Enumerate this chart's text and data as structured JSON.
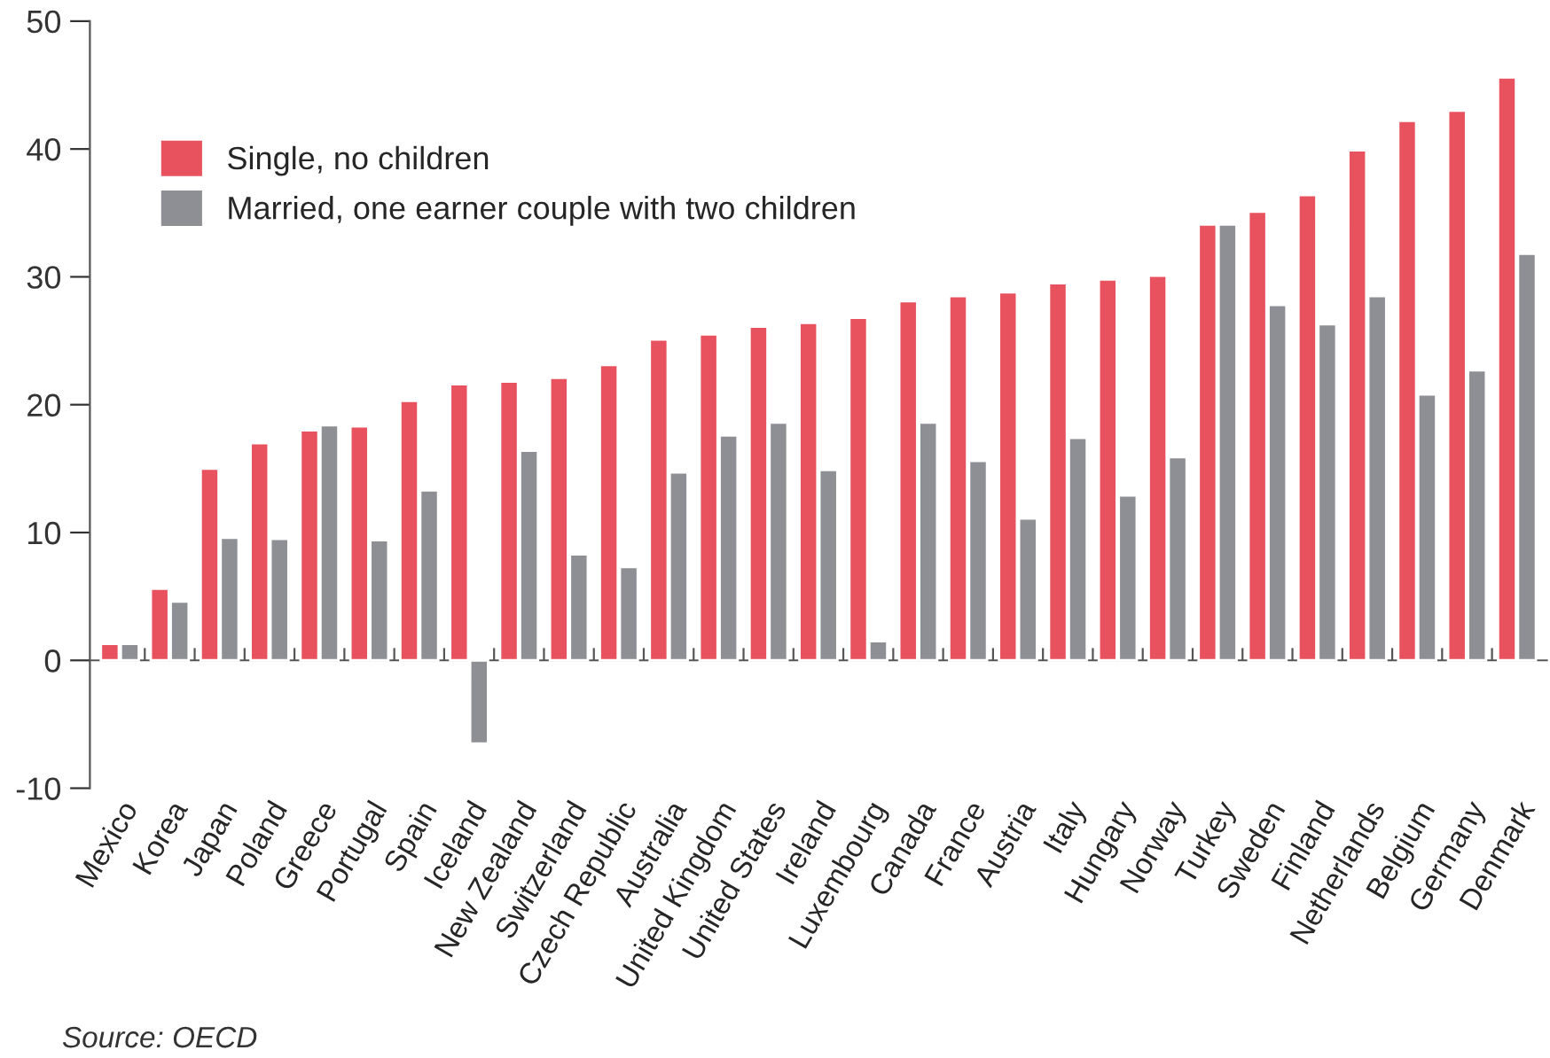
{
  "chart_data": {
    "type": "bar",
    "categories": [
      "Mexico",
      "Korea",
      "Japan",
      "Poland",
      "Greece",
      "Portugal",
      "Spain",
      "Iceland",
      "New Zealand",
      "Switzerland",
      "Czech Republic",
      "Australia",
      "United Kingdom",
      "United States",
      "Ireland",
      "Luxembourg",
      "Canada",
      "France",
      "Austria",
      "Italy",
      "Hungary",
      "Norway",
      "Turkey",
      "Sweden",
      "Finland",
      "Netherlands",
      "Belgium",
      "Germany",
      "Denmark"
    ],
    "series": [
      {
        "name": "Single, no children",
        "color": "#e8525e",
        "values": [
          1.3,
          5.6,
          15.0,
          17.0,
          18.0,
          18.3,
          20.3,
          21.6,
          21.8,
          22.1,
          23.1,
          25.1,
          25.5,
          26.1,
          26.4,
          26.8,
          28.1,
          28.5,
          28.8,
          29.5,
          29.8,
          30.1,
          34.1,
          35.1,
          36.4,
          39.9,
          42.2,
          43.0,
          45.6
        ]
      },
      {
        "name": "Married, one earner couple with two children",
        "color": "#8e8f94",
        "values": [
          1.3,
          4.6,
          9.6,
          9.5,
          18.4,
          9.4,
          13.3,
          -6.5,
          16.4,
          8.3,
          7.3,
          14.7,
          17.6,
          18.6,
          14.9,
          1.5,
          18.6,
          15.6,
          11.1,
          17.4,
          12.9,
          15.9,
          34.1,
          27.8,
          26.3,
          28.5,
          20.8,
          22.7,
          31.8
        ]
      }
    ],
    "ylim": [
      -10,
      50
    ],
    "yticks": [
      -10,
      0,
      10,
      20,
      30,
      40,
      50
    ],
    "legend": "top left",
    "annotations": [
      "Source: OECD"
    ]
  }
}
